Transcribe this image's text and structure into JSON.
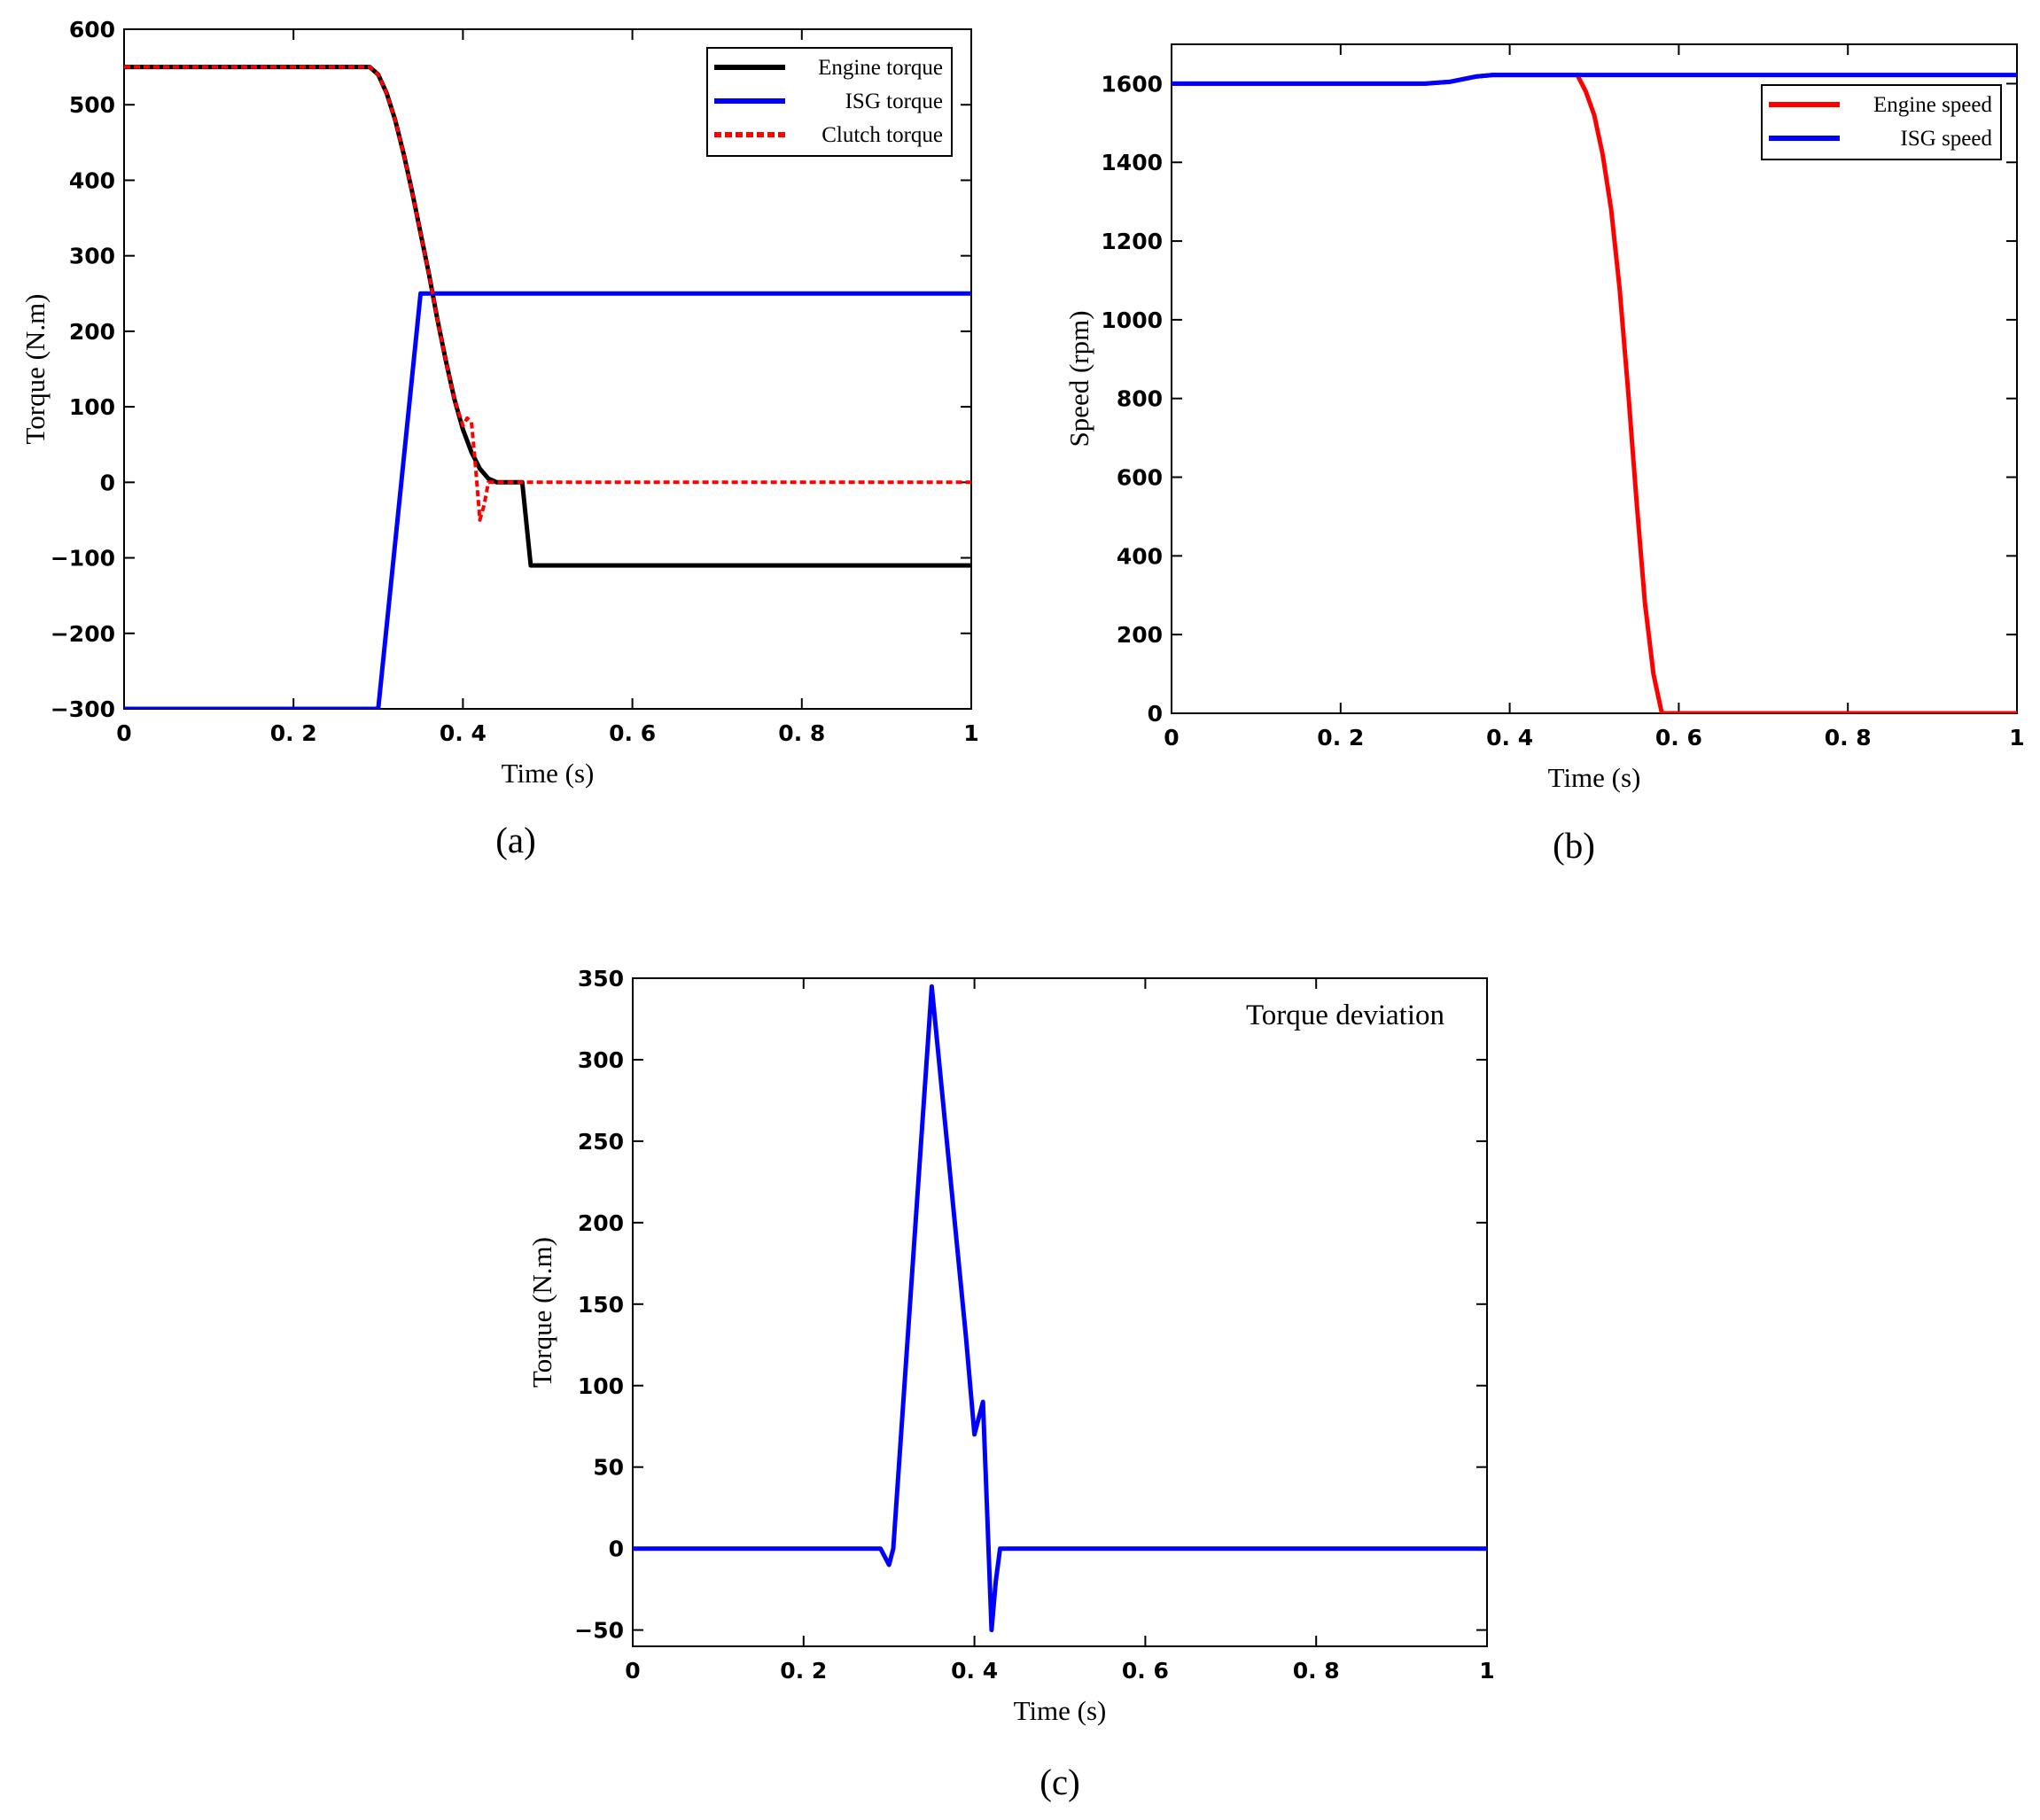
{
  "chart_data": [
    {
      "type": "line",
      "caption": "(a)",
      "xlabel": "Time  (s)",
      "ylabel": "Torque (N.m)",
      "xlim": [
        0,
        1
      ],
      "ylim": [
        -300,
        600
      ],
      "xticks": [
        0,
        0.2,
        0.4,
        0.6,
        0.8,
        1
      ],
      "xtick_labels": [
        "0",
        "0. 2",
        "0. 4",
        "0. 6",
        "0. 8",
        "1"
      ],
      "yticks": [
        -300,
        -200,
        -100,
        0,
        100,
        200,
        300,
        400,
        500,
        600
      ],
      "ytick_labels": [
        "−300",
        "−200",
        "−100",
        "0",
        "100",
        "200",
        "300",
        "400",
        "500",
        "600"
      ],
      "grid": false,
      "legend_position": "top-right",
      "series": [
        {
          "name": "Engine torque",
          "color": "#000000",
          "dash": "solid",
          "x": [
            0,
            0.29,
            0.3,
            0.31,
            0.32,
            0.33,
            0.34,
            0.35,
            0.36,
            0.37,
            0.38,
            0.39,
            0.4,
            0.41,
            0.42,
            0.43,
            0.44,
            0.47,
            0.48,
            1.0
          ],
          "y": [
            550,
            550,
            540,
            515,
            480,
            435,
            385,
            330,
            275,
            215,
            160,
            110,
            70,
            40,
            18,
            5,
            0,
            0,
            -110,
            -110
          ]
        },
        {
          "name": "ISG torque",
          "color": "#0000ff",
          "dash": "solid",
          "x": [
            0,
            0.3,
            0.35,
            1.0
          ],
          "y": [
            -300,
            -300,
            250,
            250
          ]
        },
        {
          "name": "Clutch torque",
          "color": "#ff0000",
          "dash": "dashed",
          "x": [
            0,
            0.29,
            0.3,
            0.31,
            0.32,
            0.33,
            0.34,
            0.35,
            0.36,
            0.37,
            0.38,
            0.39,
            0.4,
            0.405,
            0.41,
            0.415,
            0.42,
            0.425,
            0.43,
            0.44,
            1.0
          ],
          "y": [
            550,
            550,
            540,
            515,
            480,
            435,
            385,
            330,
            275,
            215,
            160,
            110,
            75,
            85,
            80,
            20,
            -50,
            -30,
            0,
            0,
            0
          ]
        }
      ]
    },
    {
      "type": "line",
      "caption": "(b)",
      "xlabel": "Time  (s)",
      "ylabel": "Speed  (rpm)",
      "xlim": [
        0,
        1
      ],
      "ylim": [
        0,
        1700
      ],
      "xticks": [
        0,
        0.2,
        0.4,
        0.6,
        0.8,
        1
      ],
      "xtick_labels": [
        "0",
        "0. 2",
        "0. 4",
        "0. 6",
        "0. 8",
        "1"
      ],
      "yticks": [
        0,
        200,
        400,
        600,
        800,
        1000,
        1200,
        1400,
        1600
      ],
      "ytick_labels": [
        "0",
        "200",
        "400",
        "600",
        "800",
        "1000",
        "1200",
        "1400",
        "1600"
      ],
      "grid": false,
      "legend_position": "top-right",
      "series": [
        {
          "name": "Engine speed",
          "color": "#ff0000",
          "dash": "solid",
          "x": [
            0,
            0.3,
            0.33,
            0.36,
            0.38,
            0.48,
            0.49,
            0.5,
            0.51,
            0.52,
            0.53,
            0.54,
            0.55,
            0.56,
            0.57,
            0.58,
            1.0
          ],
          "y": [
            1600,
            1600,
            1605,
            1618,
            1622,
            1622,
            1580,
            1520,
            1420,
            1280,
            1080,
            820,
            540,
            280,
            100,
            0,
            0
          ]
        },
        {
          "name": "ISG speed",
          "color": "#0000ff",
          "dash": "solid",
          "x": [
            0,
            0.3,
            0.33,
            0.36,
            0.38,
            1.0
          ],
          "y": [
            1600,
            1600,
            1605,
            1618,
            1622,
            1622
          ]
        }
      ]
    },
    {
      "type": "line",
      "caption": "(c)",
      "xlabel": "Time  (s)",
      "ylabel": "Torque (N.m)",
      "xlim": [
        0,
        1
      ],
      "ylim": [
        -60,
        350
      ],
      "xticks": [
        0,
        0.2,
        0.4,
        0.6,
        0.8,
        1
      ],
      "xtick_labels": [
        "0",
        "0. 2",
        "0. 4",
        "0. 6",
        "0. 8",
        "1"
      ],
      "yticks": [
        -50,
        0,
        50,
        100,
        150,
        200,
        250,
        300,
        350
      ],
      "ytick_labels": [
        "−50",
        "0",
        "50",
        "100",
        "150",
        "200",
        "250",
        "300",
        "350"
      ],
      "grid": false,
      "annotation": "Torque deviation",
      "series": [
        {
          "name": "Torque deviation",
          "color": "#0000ff",
          "dash": "solid",
          "x": [
            0,
            0.29,
            0.3,
            0.305,
            0.35,
            0.39,
            0.4,
            0.405,
            0.41,
            0.415,
            0.42,
            0.425,
            0.43,
            1.0
          ],
          "y": [
            0,
            0,
            -10,
            0,
            345,
            130,
            70,
            80,
            90,
            20,
            -50,
            -20,
            0,
            0
          ]
        }
      ]
    }
  ]
}
